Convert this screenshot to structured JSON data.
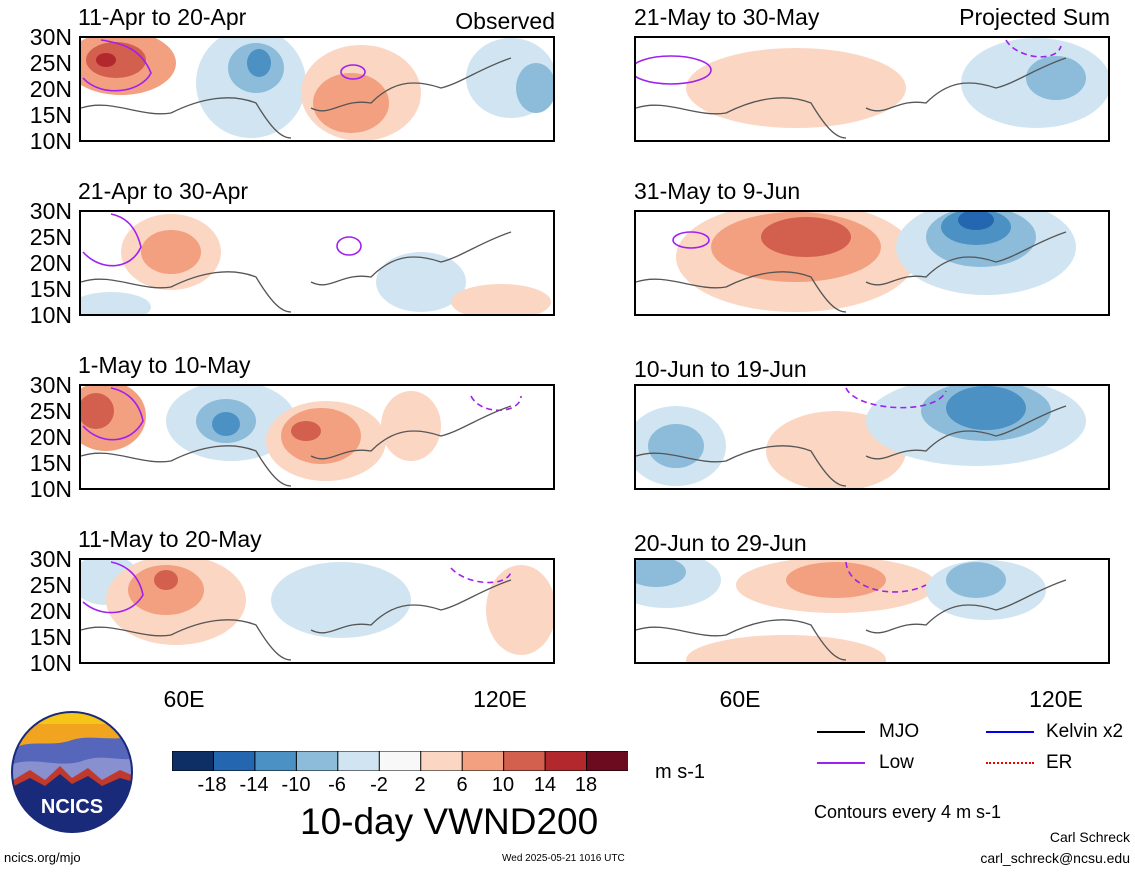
{
  "status_left": "Observed",
  "status_right": "Projected Sum",
  "lat_labels": [
    "30N",
    "25N",
    "20N",
    "15N",
    "10N"
  ],
  "lon_labels": [
    "60E",
    "120E"
  ],
  "panels_left": [
    {
      "title": "11-Apr to 20-Apr"
    },
    {
      "title": "21-Apr to 30-Apr"
    },
    {
      "title": "1-May to 10-May"
    },
    {
      "title": "11-May to 20-May"
    }
  ],
  "panels_right": [
    {
      "title": "21-May to 30-May"
    },
    {
      "title": "31-May to 9-Jun"
    },
    {
      "title": "10-Jun to 19-Jun"
    },
    {
      "title": "20-Jun to 29-Jun"
    }
  ],
  "colorbar": {
    "colors": [
      "#0d2f66",
      "#2566b0",
      "#4b91c4",
      "#8cbcda",
      "#d0e5f1",
      "#f8f8f8",
      "#fbd6c3",
      "#f2a07f",
      "#d35f4e",
      "#b3282d",
      "#6c0b20"
    ],
    "labels": [
      "-18",
      "-14",
      "-10",
      "-6",
      "-2",
      "2",
      "6",
      "10",
      "14",
      "18"
    ],
    "units": "m s-1"
  },
  "main_title": "10-day VWND200",
  "legend": [
    {
      "label": "MJO",
      "color": "#000000"
    },
    {
      "label": "Kelvin x2",
      "color": "#0000ee"
    },
    {
      "label": "Low",
      "color": "#a020f0"
    },
    {
      "label": "ER",
      "color": "#ee0000"
    }
  ],
  "contour_note": "Contours every 4 m s-1",
  "logo_text": "NCICS",
  "footer": {
    "site": "ncics.org/mjo",
    "timestamp": "Wed 2025-05-21 1016 UTC",
    "author": "Carl Schreck",
    "email": "carl_schreck@ncsu.edu"
  }
}
